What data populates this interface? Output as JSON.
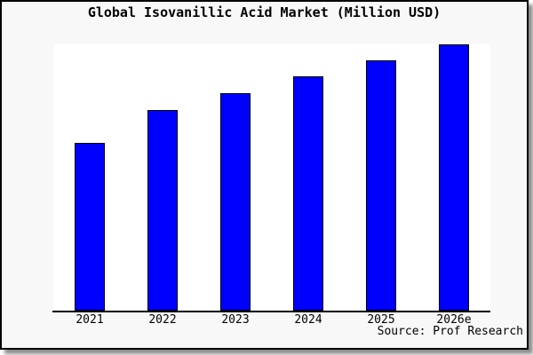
{
  "figure": {
    "title": "Global Isovanillic Acid Market (Million USD)",
    "source_note": "Source: Prof Research"
  },
  "colors": {
    "bar_fill": "#0000ff",
    "bar_border": "#000000",
    "figure_background": "#f8f8f8",
    "plot_background": "#ffffff",
    "axis_line": "#000000",
    "frame_border": "#000000",
    "text": "#000000"
  },
  "chart_data": {
    "type": "bar",
    "title": "Global Isovanillic Acid Market (Million USD)",
    "categories": [
      "2021",
      "2022",
      "2023",
      "2024",
      "2025",
      "2026e"
    ],
    "values": [
      62.9,
      75.3,
      81.6,
      88.0,
      94.0,
      100.0
    ],
    "value_note": "No y-axis ticks or data labels shown; values estimated as percent of the tallest (2026e) bar",
    "xlabel": "",
    "ylabel": "",
    "ylim": [
      0,
      100
    ],
    "grid": false,
    "legend": false,
    "annotations": [
      "Source: Prof Research"
    ]
  }
}
